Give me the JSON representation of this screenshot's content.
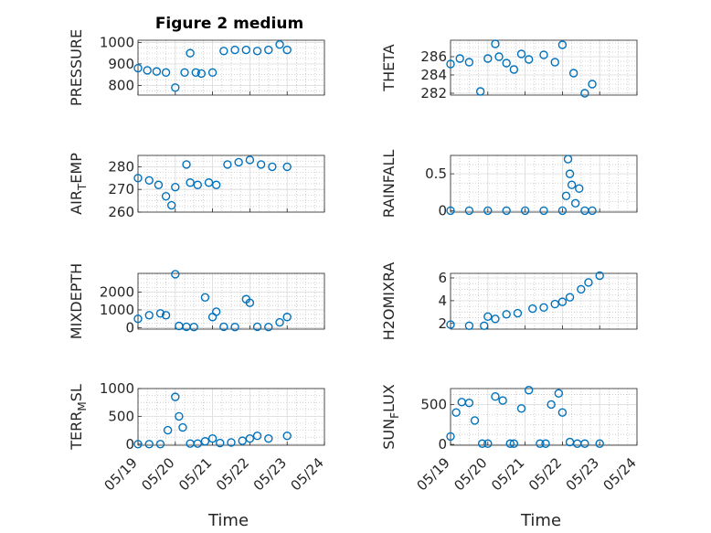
{
  "figure": {
    "title": "Figure 2 medium",
    "xlabel": "Time",
    "marker_color": "#0072BD",
    "x_ticks": [
      "05/19",
      "05/20",
      "05/21",
      "05/22",
      "05/23",
      "05/24"
    ]
  },
  "chart_data": [
    {
      "type": "scatter",
      "marker": "circle",
      "id": "pressure",
      "ylabel": "PRESSURE",
      "ylim": [
        755,
        1010
      ],
      "yticks": [
        800,
        900,
        1000
      ],
      "grid": true,
      "x": [
        0.0,
        0.25,
        0.5,
        0.75,
        1.0,
        1.25,
        1.4,
        1.55,
        1.7,
        2.0,
        2.3,
        2.6,
        2.9,
        3.2,
        3.5,
        3.8,
        4.0
      ],
      "y": [
        880,
        870,
        865,
        860,
        790,
        860,
        950,
        860,
        855,
        860,
        960,
        965,
        965,
        960,
        965,
        990,
        965
      ]
    },
    {
      "type": "scatter",
      "marker": "circle",
      "id": "theta",
      "ylabel": "THETA",
      "ylim": [
        281.8,
        287.8
      ],
      "yticks": [
        282,
        284,
        286
      ],
      "grid": true,
      "x": [
        0.0,
        0.25,
        0.5,
        0.8,
        1.0,
        1.2,
        1.3,
        1.5,
        1.7,
        1.9,
        2.1,
        2.5,
        2.8,
        3.0,
        3.3,
        3.6,
        3.8
      ],
      "y": [
        285.2,
        285.8,
        285.4,
        282.2,
        285.8,
        287.4,
        286.0,
        285.3,
        284.6,
        286.3,
        285.7,
        286.2,
        285.4,
        287.3,
        284.2,
        282.0,
        283.0
      ]
    },
    {
      "type": "scatter",
      "marker": "circle",
      "id": "air_temp",
      "ylabel": "AIR_TEMP",
      "ylim": [
        260,
        285
      ],
      "yticks": [
        260,
        270,
        280
      ],
      "grid": true,
      "x": [
        0.0,
        0.3,
        0.55,
        0.75,
        0.9,
        1.0,
        1.3,
        1.4,
        1.6,
        1.9,
        2.1,
        2.4,
        2.7,
        3.0,
        3.3,
        3.6,
        4.0
      ],
      "y": [
        275,
        274,
        272,
        267,
        263,
        271,
        281,
        273,
        272,
        273,
        272,
        281,
        282,
        283,
        281,
        280,
        280
      ]
    },
    {
      "type": "scatter",
      "marker": "circle",
      "id": "rainfall",
      "ylabel": "RAINFALL",
      "ylim": [
        -0.02,
        0.75
      ],
      "yticks": [
        0,
        0.5
      ],
      "grid": true,
      "x": [
        0.0,
        0.5,
        1.0,
        1.5,
        2.0,
        2.5,
        3.0,
        3.1,
        3.15,
        3.2,
        3.25,
        3.35,
        3.45,
        3.6,
        3.8
      ],
      "y": [
        0,
        0,
        0,
        0,
        0,
        0,
        0,
        0.2,
        0.7,
        0.5,
        0.35,
        0.1,
        0.3,
        0,
        0
      ]
    },
    {
      "type": "scatter",
      "marker": "circle",
      "id": "mixdepth",
      "ylabel": "MIXDEPTH",
      "ylim": [
        -80,
        3050
      ],
      "yticks": [
        0,
        1000,
        2000
      ],
      "grid": true,
      "x": [
        0.0,
        0.3,
        0.6,
        0.75,
        1.0,
        1.1,
        1.3,
        1.5,
        1.8,
        2.0,
        2.1,
        2.3,
        2.6,
        2.9,
        3.0,
        3.2,
        3.5,
        3.8,
        4.0
      ],
      "y": [
        500,
        700,
        800,
        700,
        3000,
        100,
        50,
        40,
        1700,
        600,
        900,
        50,
        40,
        1600,
        1400,
        50,
        40,
        300,
        600
      ]
    },
    {
      "type": "scatter",
      "marker": "circle",
      "id": "h2omixra",
      "ylabel": "H2OMIXRA",
      "ylim": [
        1.5,
        6.4
      ],
      "yticks": [
        2,
        4,
        6
      ],
      "grid": true,
      "x": [
        0.0,
        0.5,
        0.9,
        1.0,
        1.2,
        1.5,
        1.8,
        2.2,
        2.5,
        2.8,
        3.0,
        3.2,
        3.5,
        3.7,
        4.0
      ],
      "y": [
        1.9,
        1.8,
        1.8,
        2.6,
        2.4,
        2.8,
        2.9,
        3.3,
        3.4,
        3.7,
        3.9,
        4.3,
        5.0,
        5.6,
        6.2
      ]
    },
    {
      "type": "scatter",
      "marker": "circle",
      "id": "terr_msl",
      "ylabel": "TERR_MSL",
      "ylim": [
        -20,
        1000
      ],
      "yticks": [
        0,
        500,
        1000
      ],
      "grid": true,
      "x": [
        0.0,
        0.3,
        0.6,
        0.8,
        1.0,
        1.1,
        1.2,
        1.4,
        1.6,
        1.8,
        2.0,
        2.2,
        2.5,
        2.8,
        3.0,
        3.2,
        3.5,
        4.0
      ],
      "y": [
        0,
        0,
        0,
        250,
        850,
        500,
        300,
        10,
        10,
        50,
        100,
        20,
        30,
        60,
        100,
        150,
        100,
        150
      ]
    },
    {
      "type": "scatter",
      "marker": "circle",
      "id": "sun_flux",
      "ylabel": "SUN_FLUX",
      "ylim": [
        -10,
        700
      ],
      "yticks": [
        0,
        500
      ],
      "grid": true,
      "x": [
        0.0,
        0.15,
        0.3,
        0.5,
        0.65,
        0.85,
        1.0,
        1.2,
        1.4,
        1.6,
        1.7,
        1.9,
        2.1,
        2.4,
        2.55,
        2.7,
        2.9,
        3.0,
        3.2,
        3.4,
        3.6,
        4.0
      ],
      "y": [
        100,
        400,
        530,
        520,
        300,
        10,
        10,
        600,
        550,
        10,
        10,
        450,
        680,
        10,
        10,
        500,
        640,
        400,
        30,
        10,
        10,
        10
      ]
    }
  ]
}
